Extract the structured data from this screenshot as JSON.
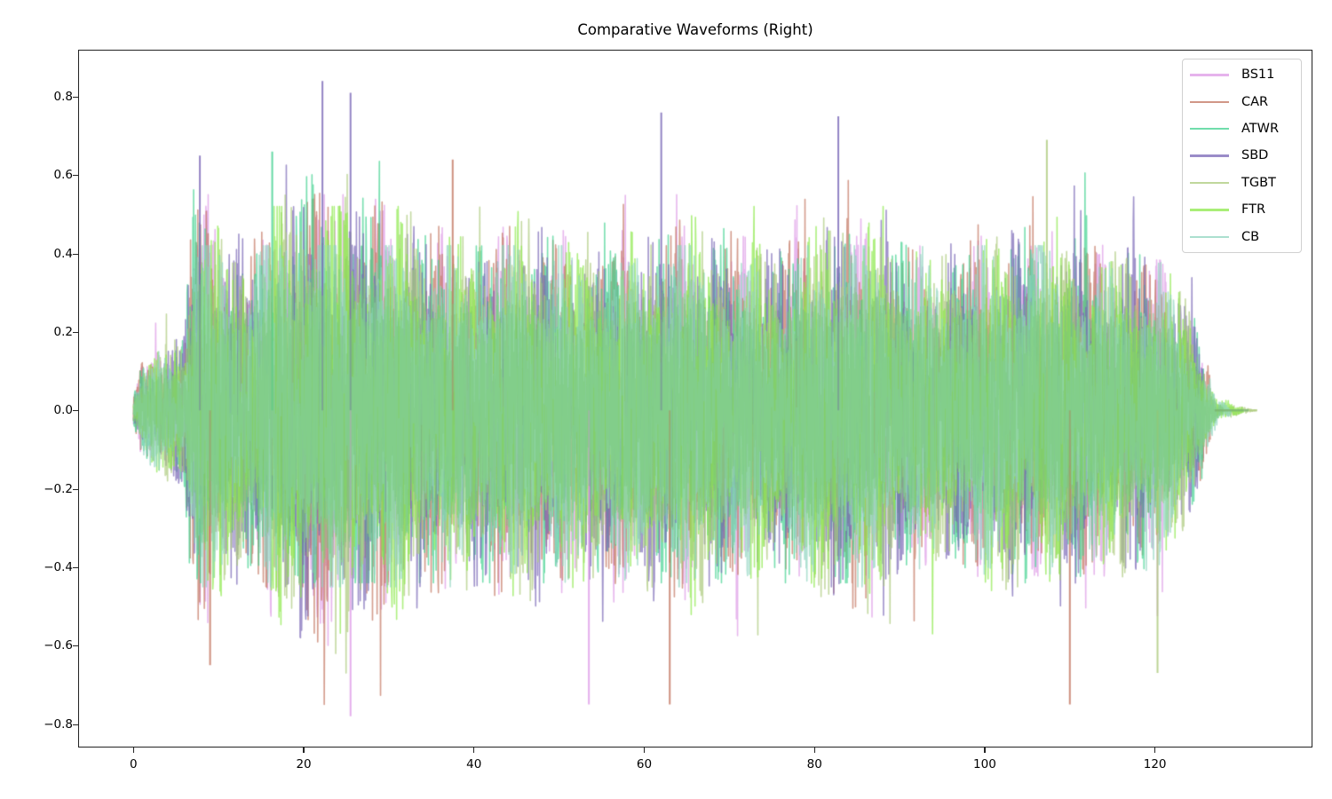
{
  "chart_data": {
    "type": "line",
    "title": "Comparative Waveforms (Right)",
    "xlabel": "",
    "ylabel": "",
    "xlim": [
      -6.5,
      138.5
    ],
    "ylim": [
      -0.86,
      0.92
    ],
    "x_ticks": [
      0,
      20,
      40,
      60,
      80,
      100,
      120
    ],
    "x_tick_labels": [
      "0",
      "20",
      "40",
      "60",
      "80",
      "100",
      "120"
    ],
    "y_ticks": [
      0.8,
      0.6,
      0.4,
      0.2,
      0.0,
      -0.2,
      -0.4,
      -0.6,
      -0.8
    ],
    "y_tick_labels": [
      "0.8",
      "0.6",
      "0.4",
      "0.2",
      "0.0",
      "−0.2",
      "−0.4",
      "−0.6",
      "−0.8"
    ],
    "grid": false,
    "legend_position": "upper right",
    "line_alpha": 0.7,
    "series": [
      {
        "name": "BS11",
        "color": "#dd99e6",
        "duration": 126.0,
        "peak_max": 0.55,
        "peak_min": -0.78
      },
      {
        "name": "CAR",
        "color": "#c2735e",
        "duration": 126.5,
        "peak_max": 0.64,
        "peak_min": -0.75
      },
      {
        "name": "ATWR",
        "color": "#40d18f",
        "duration": 125.8,
        "peak_max": 0.66,
        "peak_min": -0.44
      },
      {
        "name": "SBD",
        "color": "#7865b5",
        "duration": 125.6,
        "peak_max": 0.84,
        "peak_min": -0.58
      },
      {
        "name": "TGBT",
        "color": "#abc97a",
        "duration": 132.0,
        "peak_max": 0.69,
        "peak_min": -0.67
      },
      {
        "name": "FTR",
        "color": "#8ce84a",
        "duration": 130.5,
        "peak_max": 0.52,
        "peak_min": -0.57
      },
      {
        "name": "CB",
        "color": "#8fd4bf",
        "duration": 129.0,
        "peak_max": 0.42,
        "peak_min": -0.45
      }
    ],
    "envelope": {
      "description": "approximate amplitude envelope (seconds, abs amplitude) shared by all tracks",
      "points": [
        [
          0,
          0.03
        ],
        [
          1,
          0.12
        ],
        [
          3,
          0.15
        ],
        [
          6,
          0.18
        ],
        [
          6.8,
          0.45
        ],
        [
          8,
          0.5
        ],
        [
          10,
          0.42
        ],
        [
          14,
          0.38
        ],
        [
          17,
          0.5
        ],
        [
          22,
          0.55
        ],
        [
          25,
          0.5
        ],
        [
          30,
          0.48
        ],
        [
          35,
          0.42
        ],
        [
          38,
          0.4
        ],
        [
          40,
          0.42
        ],
        [
          45,
          0.45
        ],
        [
          50,
          0.42
        ],
        [
          55,
          0.4
        ],
        [
          60,
          0.42
        ],
        [
          65,
          0.45
        ],
        [
          70,
          0.4
        ],
        [
          75,
          0.38
        ],
        [
          80,
          0.42
        ],
        [
          85,
          0.45
        ],
        [
          90,
          0.38
        ],
        [
          95,
          0.35
        ],
        [
          100,
          0.4
        ],
        [
          105,
          0.42
        ],
        [
          110,
          0.4
        ],
        [
          115,
          0.38
        ],
        [
          120,
          0.36
        ],
        [
          123,
          0.28
        ],
        [
          125,
          0.2
        ],
        [
          126.5,
          0.08
        ],
        [
          127.5,
          0.02
        ],
        [
          132,
          0.0
        ]
      ]
    },
    "notable_peaks": [
      {
        "series": "SBD",
        "x": 22.2,
        "y": 0.84
      },
      {
        "series": "SBD",
        "x": 25.5,
        "y": 0.81
      },
      {
        "series": "SBD",
        "x": 62.0,
        "y": 0.76
      },
      {
        "series": "SBD",
        "x": 82.8,
        "y": 0.75
      },
      {
        "series": "TGBT",
        "x": 107.3,
        "y": 0.69
      },
      {
        "series": "ATWR",
        "x": 16.3,
        "y": 0.66
      },
      {
        "series": "SBD",
        "x": 7.8,
        "y": 0.65
      },
      {
        "series": "CAR",
        "x": 37.5,
        "y": 0.64
      },
      {
        "series": "BS11",
        "x": 25.5,
        "y": -0.78
      },
      {
        "series": "CAR",
        "x": 63.0,
        "y": -0.75
      },
      {
        "series": "CAR",
        "x": 110.0,
        "y": -0.75
      },
      {
        "series": "BS11",
        "x": 53.5,
        "y": -0.75
      },
      {
        "series": "TGBT",
        "x": 120.3,
        "y": -0.67
      },
      {
        "series": "CAR",
        "x": 9.0,
        "y": -0.65
      }
    ]
  },
  "legend": {
    "items": [
      {
        "label": "BS11",
        "color": "#dd99e6"
      },
      {
        "label": "CAR",
        "color": "#c2735e"
      },
      {
        "label": "ATWR",
        "color": "#40d18f"
      },
      {
        "label": "SBD",
        "color": "#7865b5"
      },
      {
        "label": "TGBT",
        "color": "#abc97a"
      },
      {
        "label": "FTR",
        "color": "#8ce84a"
      },
      {
        "label": "CB",
        "color": "#8fd4bf"
      }
    ]
  }
}
